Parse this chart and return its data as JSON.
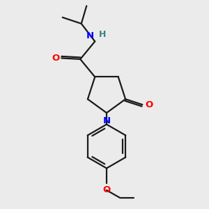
{
  "bg_color": "#ebebeb",
  "bond_color": "#1a1a1a",
  "N_color": "#0000ff",
  "O_color": "#ff0000",
  "H_color": "#3d8080",
  "line_width": 1.6,
  "font_size": 9.5,
  "figsize": [
    3.0,
    3.0
  ],
  "dpi": 100,
  "xlim": [
    0,
    10
  ],
  "ylim": [
    0,
    10
  ]
}
